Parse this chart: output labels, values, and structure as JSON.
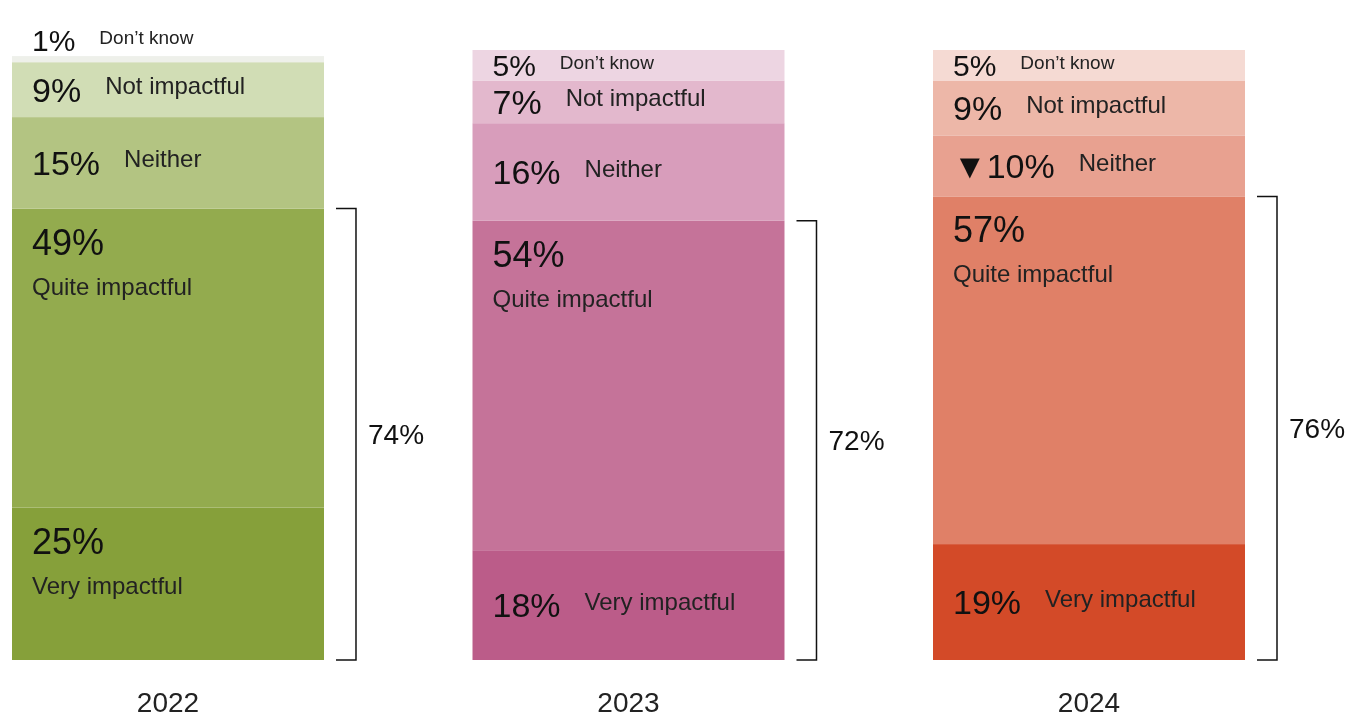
{
  "chart_data": {
    "type": "bar",
    "stacked": true,
    "categories": [
      "2022",
      "2023",
      "2024"
    ],
    "ylim": [
      0,
      100
    ],
    "tick_labels": "x",
    "series": [
      {
        "name": "Very impactful",
        "values": [
          25,
          18,
          19
        ],
        "colors": [
          "#86a03a",
          "#bb5c89",
          "#d34a28"
        ],
        "value_labels": [
          "25%",
          "18%",
          "19%"
        ]
      },
      {
        "name": "Quite impactful",
        "values": [
          49,
          54,
          57
        ],
        "colors": [
          "#93ab4e",
          "#c57399",
          "#e08067"
        ],
        "value_labels": [
          "49%",
          "54%",
          "57%"
        ]
      },
      {
        "name": "Neither",
        "values": [
          15,
          16,
          10
        ],
        "colors": [
          "#b3c482",
          "#d89dbb",
          "#e8a190"
        ],
        "value_labels": [
          "15%",
          "16%",
          "▼10%"
        ]
      },
      {
        "name": "Not impactful",
        "values": [
          9,
          7,
          9
        ],
        "colors": [
          "#d1ddb5",
          "#e3b8cd",
          "#edb7a8"
        ],
        "value_labels": [
          "9%",
          "7%",
          "9%"
        ]
      },
      {
        "name": "Don’t know",
        "values": [
          1,
          5,
          5
        ],
        "colors": [
          "#eef0ea",
          "#edd5e2",
          "#f5dad3"
        ],
        "value_labels": [
          "1%",
          "5%",
          "5%"
        ]
      }
    ],
    "annotations": [
      "74%",
      "72%",
      "76%"
    ]
  }
}
